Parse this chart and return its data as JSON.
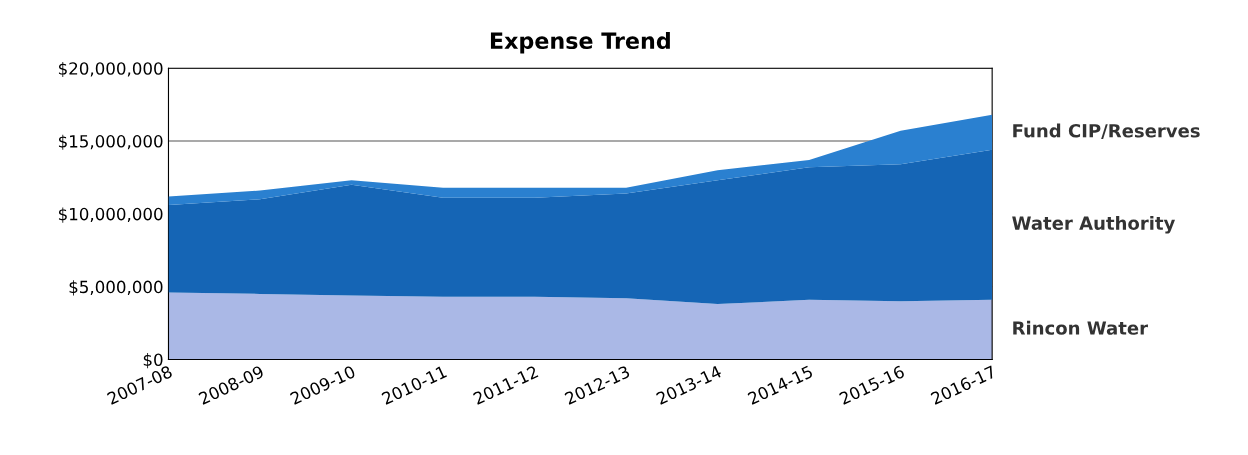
{
  "chart_data": {
    "type": "area",
    "title": "Expense Trend",
    "stacked": true,
    "categories": [
      "2007-08",
      "2008-09",
      "2009-10",
      "2010-11",
      "2011-12",
      "2012-13",
      "2013-14",
      "2014-15",
      "2015-16",
      "2016-17"
    ],
    "series": [
      {
        "name": "Rincon Water",
        "color": "#aab8e6",
        "values": [
          4600000,
          4500000,
          4400000,
          4300000,
          4300000,
          4200000,
          3800000,
          4100000,
          4000000,
          4100000
        ]
      },
      {
        "name": "Water Authority",
        "color": "#1565b5",
        "values": [
          6000000,
          6500000,
          7600000,
          6800000,
          6800000,
          7200000,
          8500000,
          9100000,
          9400000,
          10300000
        ]
      },
      {
        "name": "Fund CIP/Reserves",
        "color": "#2a80d0",
        "values": [
          600000,
          600000,
          300000,
          700000,
          700000,
          400000,
          700000,
          500000,
          2300000,
          2400000
        ]
      }
    ],
    "ylim": [
      0,
      20000000
    ],
    "yticks": [
      {
        "value": 0,
        "label": "$0"
      },
      {
        "value": 5000000,
        "label": "$5,000,000"
      },
      {
        "value": 10000000,
        "label": "$10,000,000"
      },
      {
        "value": 15000000,
        "label": "$15,000,000"
      },
      {
        "value": 20000000,
        "label": "$20,000,000"
      }
    ],
    "grid": "y",
    "legend": false
  }
}
